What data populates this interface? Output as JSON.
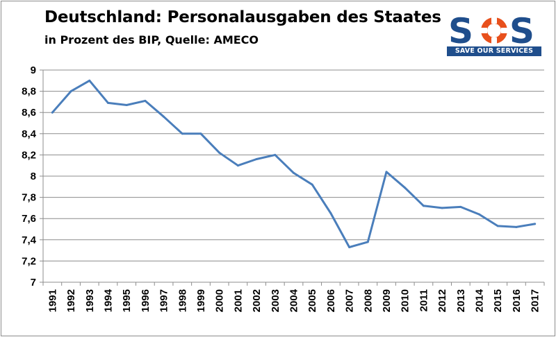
{
  "header": {
    "title": "Deutschland: Personalausgaben des Staates",
    "subtitle": "in Prozent des BIP, Quelle: AMECO"
  },
  "logo": {
    "text": "SOS",
    "tagline": "SAVE OUR SERVICES",
    "colors": {
      "primary": "#1f4e8c",
      "ring": "#e8501c"
    }
  },
  "chart_data": {
    "type": "line",
    "title": "Deutschland: Personalausgaben des Staates",
    "subtitle": "in Prozent des BIP, Quelle: AMECO",
    "x": [
      "1991",
      "1992",
      "1993",
      "1994",
      "1995",
      "1996",
      "1997",
      "1998",
      "1999",
      "2000",
      "2001",
      "2002",
      "2003",
      "2004",
      "2005",
      "2006",
      "2007",
      "2008",
      "2009",
      "2010",
      "2011",
      "2012",
      "2013",
      "2014",
      "2015",
      "2016",
      "2017"
    ],
    "series": [
      {
        "values": [
          8.6,
          8.8,
          8.9,
          8.69,
          8.67,
          8.71,
          8.56,
          8.4,
          8.4,
          8.22,
          8.1,
          8.16,
          8.2,
          8.03,
          7.92,
          7.65,
          7.33,
          7.38,
          8.04,
          7.89,
          7.72,
          7.7,
          7.71,
          7.64,
          7.53,
          7.52,
          7.55
        ],
        "color": "#4a7ebb"
      }
    ],
    "ylim": [
      7,
      9
    ],
    "yticks": [
      "7",
      "7,2",
      "7,4",
      "7,6",
      "7,8",
      "8",
      "8,2",
      "8,4",
      "8,6",
      "8,8",
      "9"
    ],
    "grid": "horizontal",
    "legend": "none"
  }
}
